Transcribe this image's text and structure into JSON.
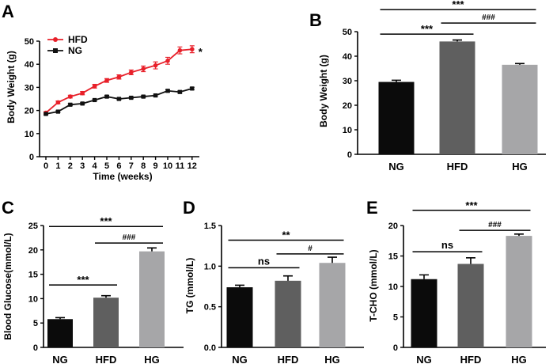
{
  "chart_data": [
    {
      "panel": "A",
      "type": "line",
      "xlabel": "Time (weeks)",
      "ylabel": "Body Weight (g)",
      "ylim": [
        0,
        50
      ],
      "yticks": [
        0,
        10,
        20,
        30,
        40,
        50
      ],
      "x": [
        0,
        1,
        2,
        3,
        4,
        5,
        6,
        7,
        8,
        9,
        10,
        11,
        12
      ],
      "series": [
        {
          "name": "HFD",
          "color": "#e8202a",
          "marker": "circle",
          "values": [
            19,
            23.5,
            26,
            27.5,
            30.5,
            33,
            34.5,
            36.5,
            38,
            39.5,
            41.5,
            46,
            46.5
          ],
          "errors": [
            0.5,
            0.6,
            0.6,
            0.7,
            0.8,
            0.8,
            0.9,
            1.0,
            1.2,
            1.5,
            1.5,
            1.5,
            1.5
          ]
        },
        {
          "name": "NG",
          "color": "#111111",
          "marker": "square",
          "values": [
            18.5,
            19.5,
            22.5,
            23,
            24.5,
            26,
            25,
            25.5,
            26,
            26.5,
            28.5,
            28,
            29.5
          ],
          "errors": [
            0.4,
            0.4,
            0.4,
            0.4,
            0.4,
            0.5,
            0.4,
            0.4,
            0.4,
            0.5,
            0.5,
            0.5,
            0.5
          ]
        }
      ],
      "annotations": [
        "*"
      ]
    },
    {
      "panel": "B",
      "type": "bar",
      "categories": [
        "NG",
        "HFD",
        "HG"
      ],
      "values": [
        29.5,
        46,
        36.5
      ],
      "errors": [
        0.7,
        0.6,
        0.5
      ],
      "colors": [
        "#0b0b0b",
        "#5f5f5f",
        "#a6a6a8"
      ],
      "ylabel": "Body Weight (g)",
      "ylim": [
        0,
        50
      ],
      "yticks": [
        0,
        10,
        20,
        30,
        40,
        50
      ],
      "significance": [
        {
          "from": 0,
          "to": 1,
          "label": "***",
          "level": 49
        },
        {
          "from": 1,
          "to": 2,
          "label": "###",
          "level": 53.5
        },
        {
          "from": 0,
          "to": 2,
          "label": "***",
          "level": 59
        }
      ]
    },
    {
      "panel": "C",
      "type": "bar",
      "categories": [
        "NG",
        "HFD",
        "HG"
      ],
      "values": [
        5.8,
        10.2,
        19.7
      ],
      "errors": [
        0.3,
        0.4,
        0.7
      ],
      "colors": [
        "#0b0b0b",
        "#5f5f5f",
        "#a6a6a8"
      ],
      "ylabel": "Blood Glucose(mmol/L)",
      "ylim": [
        0,
        25
      ],
      "yticks": [
        0,
        5,
        10,
        15,
        20,
        25
      ],
      "significance": [
        {
          "from": 0,
          "to": 1,
          "label": "***",
          "level": 12.8
        },
        {
          "from": 1,
          "to": 2,
          "label": "###",
          "level": 21.4
        },
        {
          "from": 0,
          "to": 2,
          "label": "***",
          "level": 24.8
        }
      ]
    },
    {
      "panel": "D",
      "type": "bar",
      "categories": [
        "NG",
        "HFD",
        "HG"
      ],
      "values": [
        0.74,
        0.82,
        1.04
      ],
      "errors": [
        0.025,
        0.06,
        0.07
      ],
      "colors": [
        "#0b0b0b",
        "#5f5f5f",
        "#a6a6a8"
      ],
      "ylabel": "TG (mmol/L)",
      "ylim": [
        0,
        1.5
      ],
      "yticks": [
        "0.0",
        "0.5",
        "1.0",
        "1.5"
      ],
      "significance": [
        {
          "from": 0,
          "to": 1,
          "label": "ns",
          "level": 0.98
        },
        {
          "from": 1,
          "to": 2,
          "label": "#",
          "level": 1.15
        },
        {
          "from": 0,
          "to": 2,
          "label": "**",
          "level": 1.32
        }
      ]
    },
    {
      "panel": "E",
      "type": "bar",
      "categories": [
        "NG",
        "HFD",
        "HG"
      ],
      "values": [
        11.2,
        13.7,
        18.3
      ],
      "errors": [
        0.7,
        1.0,
        0.3
      ],
      "colors": [
        "#0b0b0b",
        "#5f5f5f",
        "#a6a6a8"
      ],
      "ylabel": "T-CHO (mmol/L)",
      "ylim": [
        0,
        20
      ],
      "yticks": [
        0,
        5,
        10,
        15,
        20
      ],
      "significance": [
        {
          "from": 0,
          "to": 1,
          "label": "ns",
          "level": 15.7
        },
        {
          "from": 1,
          "to": 2,
          "label": "###",
          "level": 19.2
        },
        {
          "from": 0,
          "to": 2,
          "label": "***",
          "level": 22.5
        }
      ]
    }
  ]
}
